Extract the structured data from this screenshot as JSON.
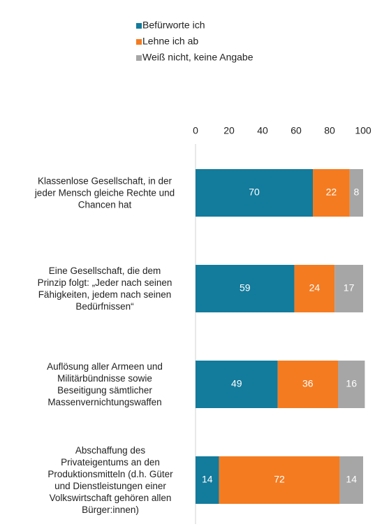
{
  "chart_data": {
    "type": "stacked_barh",
    "categories": [
      "Klassenlose Gesellschaft, in der\njeder Mensch gleiche Rechte und\nChancen hat",
      "Eine Gesellschaft, die dem\nPrinzip folgt: „Jeder nach seinen\nFähigkeiten, jedem nach seinen\nBedürfnissen“",
      "Auflösung aller Armeen und\nMilitärbündnisse sowie\nBeseitigung sämtlicher\nMassenvernichtungswaffen",
      "Abschaffung des\nPrivateigentums an den\nProduktionsmitteln (d.h. Güter\nund Dienstleistungen einer\nVolkswirtschaft gehören allen\nBürger:innen)"
    ],
    "series": [
      {
        "name": "Befürworte ich",
        "color": "#137b9c",
        "values": [
          70,
          59,
          49,
          14
        ]
      },
      {
        "name": "Lehne ich ab",
        "color": "#f47b20",
        "values": [
          22,
          24,
          36,
          72
        ]
      },
      {
        "name": "Weiß nicht, keine Angabe",
        "color": "#a6a6a6",
        "values": [
          8,
          17,
          16,
          14
        ]
      }
    ],
    "xlim": [
      0,
      100
    ],
    "xticks": [
      0,
      20,
      40,
      60,
      80,
      100
    ]
  }
}
